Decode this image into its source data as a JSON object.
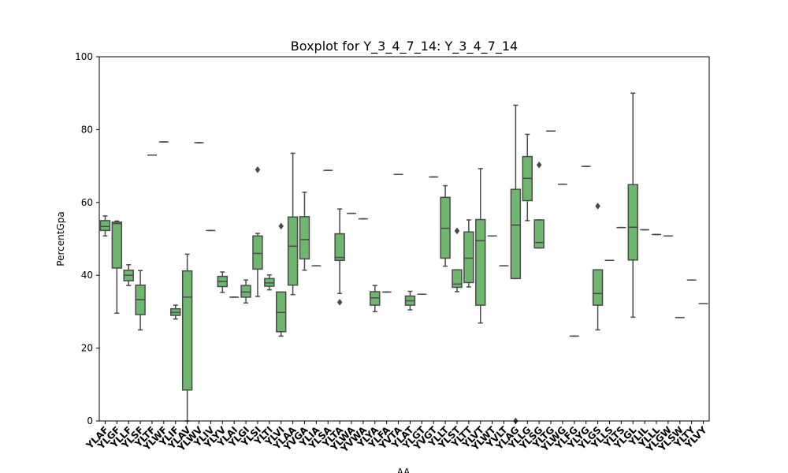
{
  "chart_data": {
    "type": "boxplot",
    "title": "Boxplot for Y_3_4_7_14: Y_3_4_7_14",
    "xlabel": "AA",
    "ylabel": "PercentGpa",
    "ylim": [
      0,
      100
    ],
    "yticks": [
      0,
      20,
      40,
      60,
      80,
      100
    ],
    "box_color": "#6fb66f",
    "line_color": "#4a4a4a",
    "categories": [
      "YLAF",
      "YLGF",
      "YLLF",
      "YLSF",
      "YLTF",
      "YLWF",
      "YLIF",
      "YLAV",
      "YLWV",
      "YLIV",
      "YLYV",
      "YLAI",
      "YLGI",
      "YLSI",
      "YLTI",
      "YLVI",
      "YLAA",
      "YVGA",
      "YLIA",
      "YLSA",
      "YLTA",
      "YLWA",
      "YVWA",
      "YLYA",
      "YLFA",
      "YVTA",
      "YLAT",
      "YLGT",
      "YVGT",
      "YLLT",
      "YLST",
      "YLTT",
      "YLVT",
      "YLWT",
      "YVLT",
      "YLAG",
      "YLLG",
      "YLSG",
      "YLTG",
      "YLWG",
      "YLFG",
      "YLYG",
      "YLGS",
      "YLLS",
      "YLTS",
      "YLGL",
      "YLIL",
      "YLLL",
      "YLGW",
      "YLSW",
      "YLTY",
      "YLVY"
    ],
    "boxes": [
      {
        "min": 50.8,
        "q1": 52.3,
        "median": 53.4,
        "q3": 55.0,
        "max": 56.3
      },
      {
        "min": 29.6,
        "q1": 42.0,
        "median": 54.2,
        "q3": 54.6,
        "max": 54.9
      },
      {
        "min": 37.2,
        "q1": 38.5,
        "median": 40.0,
        "q3": 41.4,
        "max": 42.9
      },
      {
        "min": 25.0,
        "q1": 29.2,
        "median": 33.3,
        "q3": 37.3,
        "max": 41.3
      },
      {
        "min": 73.0,
        "q1": 73.0,
        "median": 73.0,
        "q3": 73.0,
        "max": 73.0
      },
      {
        "min": 76.6,
        "q1": 76.6,
        "median": 76.6,
        "q3": 76.6,
        "max": 76.6
      },
      {
        "min": 28.0,
        "q1": 29.0,
        "median": 29.8,
        "q3": 30.8,
        "max": 31.8
      },
      {
        "min": 0.0,
        "q1": 8.5,
        "median": 34.0,
        "q3": 41.2,
        "max": 45.8
      },
      {
        "min": 76.4,
        "q1": 76.4,
        "median": 76.4,
        "q3": 76.4,
        "max": 76.4
      },
      {
        "min": 52.3,
        "q1": 52.3,
        "median": 52.3,
        "q3": 52.3,
        "max": 52.3
      },
      {
        "min": 35.3,
        "q1": 36.9,
        "median": 38.3,
        "q3": 39.7,
        "max": 40.9
      },
      {
        "min": 34.0,
        "q1": 34.0,
        "median": 34.0,
        "q3": 34.0,
        "max": 34.0
      },
      {
        "min": 32.4,
        "q1": 34.0,
        "median": 35.4,
        "q3": 37.2,
        "max": 38.7
      },
      {
        "min": 34.2,
        "q1": 41.7,
        "median": 46.0,
        "q3": 50.8,
        "max": 51.5,
        "outliers": [
          69.0
        ]
      },
      {
        "min": 36.0,
        "q1": 37.0,
        "median": 37.9,
        "q3": 39.1,
        "max": 40.1
      },
      {
        "min": 23.3,
        "q1": 24.5,
        "median": 29.8,
        "q3": 35.4,
        "max": 35.4,
        "outliers": [
          53.5
        ]
      },
      {
        "min": 34.7,
        "q1": 37.3,
        "median": 48.0,
        "q3": 56.0,
        "max": 73.5
      },
      {
        "min": 41.4,
        "q1": 44.5,
        "median": 49.8,
        "q3": 56.1,
        "max": 62.8
      },
      {
        "min": 42.6,
        "q1": 42.6,
        "median": 42.6,
        "q3": 42.6,
        "max": 42.6
      },
      {
        "min": 68.8,
        "q1": 68.8,
        "median": 68.8,
        "q3": 68.8,
        "max": 68.8
      },
      {
        "min": 35.0,
        "q1": 44.1,
        "median": 44.9,
        "q3": 51.4,
        "max": 58.2,
        "outliers": [
          32.6
        ]
      },
      {
        "min": 57.0,
        "q1": 57.0,
        "median": 57.0,
        "q3": 57.0,
        "max": 57.0
      },
      {
        "min": 55.5,
        "q1": 55.5,
        "median": 55.5,
        "q3": 55.5,
        "max": 55.5
      },
      {
        "min": 30.0,
        "q1": 31.8,
        "median": 33.8,
        "q3": 35.5,
        "max": 37.2
      },
      {
        "min": 35.4,
        "q1": 35.4,
        "median": 35.4,
        "q3": 35.4,
        "max": 35.4
      },
      {
        "min": 67.7,
        "q1": 67.7,
        "median": 67.7,
        "q3": 67.7,
        "max": 67.7
      },
      {
        "min": 30.5,
        "q1": 31.8,
        "median": 33.0,
        "q3": 34.3,
        "max": 35.6
      },
      {
        "min": 34.8,
        "q1": 34.8,
        "median": 34.8,
        "q3": 34.8,
        "max": 34.8
      },
      {
        "min": 67.0,
        "q1": 67.0,
        "median": 67.0,
        "q3": 67.0,
        "max": 67.0
      },
      {
        "min": 42.5,
        "q1": 44.7,
        "median": 52.9,
        "q3": 61.4,
        "max": 64.6
      },
      {
        "min": 35.5,
        "q1": 36.7,
        "median": 37.6,
        "q3": 41.5,
        "max": 41.5,
        "outliers": [
          52.2
        ]
      },
      {
        "min": 36.8,
        "q1": 38.0,
        "median": 44.7,
        "q3": 51.9,
        "max": 55.2
      },
      {
        "min": 26.9,
        "q1": 31.8,
        "median": 49.5,
        "q3": 55.3,
        "max": 69.3
      },
      {
        "min": 50.8,
        "q1": 50.8,
        "median": 50.8,
        "q3": 50.8,
        "max": 50.8
      },
      {
        "min": 42.6,
        "q1": 42.6,
        "median": 42.6,
        "q3": 42.6,
        "max": 42.6
      },
      {
        "min": 39.1,
        "q1": 39.1,
        "median": 53.8,
        "q3": 63.6,
        "max": 86.7,
        "outliers": [
          0.0
        ]
      },
      {
        "min": 55.0,
        "q1": 60.5,
        "median": 66.6,
        "q3": 72.6,
        "max": 78.7
      },
      {
        "min": 47.5,
        "q1": 47.5,
        "median": 49.0,
        "q3": 55.2,
        "max": 55.2,
        "outliers": [
          70.3
        ]
      },
      {
        "min": 79.6,
        "q1": 79.6,
        "median": 79.6,
        "q3": 79.6,
        "max": 79.6
      },
      {
        "min": 65.0,
        "q1": 65.0,
        "median": 65.0,
        "q3": 65.0,
        "max": 65.0
      },
      {
        "min": 23.3,
        "q1": 23.3,
        "median": 23.3,
        "q3": 23.3,
        "max": 23.3
      },
      {
        "min": 69.9,
        "q1": 69.9,
        "median": 69.9,
        "q3": 69.9,
        "max": 69.9
      },
      {
        "min": 25.0,
        "q1": 31.8,
        "median": 35.0,
        "q3": 41.5,
        "max": 41.5,
        "outliers": [
          59.0
        ]
      },
      {
        "min": 44.1,
        "q1": 44.1,
        "median": 44.1,
        "q3": 44.1,
        "max": 44.1
      },
      {
        "min": 53.1,
        "q1": 53.1,
        "median": 53.1,
        "q3": 53.1,
        "max": 53.1
      },
      {
        "min": 28.5,
        "q1": 44.2,
        "median": 53.2,
        "q3": 64.9,
        "max": 90.0
      },
      {
        "min": 52.5,
        "q1": 52.5,
        "median": 52.5,
        "q3": 52.5,
        "max": 52.5
      },
      {
        "min": 51.2,
        "q1": 51.2,
        "median": 51.2,
        "q3": 51.2,
        "max": 51.2
      },
      {
        "min": 50.8,
        "q1": 50.8,
        "median": 50.8,
        "q3": 50.8,
        "max": 50.8
      },
      {
        "min": 28.4,
        "q1": 28.4,
        "median": 28.4,
        "q3": 28.4,
        "max": 28.4
      },
      {
        "min": 38.7,
        "q1": 38.7,
        "median": 38.7,
        "q3": 38.7,
        "max": 38.7
      },
      {
        "min": 32.2,
        "q1": 32.2,
        "median": 32.2,
        "q3": 32.2,
        "max": 32.2
      }
    ]
  }
}
